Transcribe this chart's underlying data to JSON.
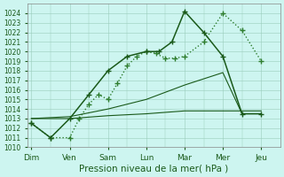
{
  "background_color": "#cdf5f0",
  "grid_color": "#99ccbb",
  "xlabel": "Pression niveau de la mer( hPa )",
  "x_labels": [
    "Dim",
    "Ven",
    "Sam",
    "Lun",
    "Mar",
    "Mer",
    "Jeu"
  ],
  "x_ticks": [
    0,
    1,
    2,
    3,
    4,
    5,
    6
  ],
  "xlim": [
    -0.1,
    6.5
  ],
  "ylim_min": 1010,
  "ylim_max": 1025,
  "tick_color": "#1a5a1a",
  "xlabel_fontsize": 7.5,
  "ytick_fontsize": 5.5,
  "xtick_fontsize": 6.5,
  "line1_x": [
    0,
    0.5,
    1.0,
    1.25,
    1.5,
    1.75,
    2.0,
    2.25,
    2.5,
    2.75,
    3.0,
    3.25,
    3.5,
    3.75,
    4.0,
    4.5,
    5.0,
    5.5,
    6.0
  ],
  "line1_y": [
    1012.5,
    1011.0,
    1011.0,
    1013.0,
    1014.5,
    1015.5,
    1015.0,
    1016.7,
    1018.5,
    1019.5,
    1020.0,
    1019.8,
    1019.3,
    1019.3,
    1019.5,
    1021.0,
    1024.0,
    1022.2,
    1019.0
  ],
  "line1_color": "#2e7d2e",
  "line1_ls": ":",
  "line1_lw": 1.0,
  "line1_marker": "+",
  "line1_ms": 4.0,
  "line2_x": [
    0,
    0.5,
    1.0,
    1.5,
    2.0,
    2.5,
    3.0,
    3.33,
    3.67,
    4.0,
    4.5,
    5.0,
    5.5,
    6.0
  ],
  "line2_y": [
    1012.5,
    1011.0,
    1013.0,
    1015.5,
    1018.0,
    1019.5,
    1020.0,
    1020.0,
    1021.0,
    1024.2,
    1022.0,
    1019.5,
    1013.5,
    1013.5
  ],
  "line2_color": "#1a5a1a",
  "line2_ls": "-",
  "line2_lw": 1.1,
  "line2_marker": "+",
  "line2_ms": 4.0,
  "line3_x": [
    0,
    1,
    2,
    3,
    4,
    5,
    6
  ],
  "line3_y": [
    1013.0,
    1013.0,
    1013.3,
    1013.5,
    1013.8,
    1013.8,
    1013.8
  ],
  "line3_color": "#1a5a1a",
  "line3_ls": "-",
  "line3_lw": 0.8,
  "line4_x": [
    0,
    1,
    2,
    3,
    4,
    5,
    5.5,
    6
  ],
  "line4_y": [
    1013.0,
    1013.2,
    1014.0,
    1015.0,
    1016.5,
    1017.8,
    1013.5,
    1013.5
  ],
  "line4_color": "#1a5a1a",
  "line4_ls": "-",
  "line4_lw": 0.8
}
